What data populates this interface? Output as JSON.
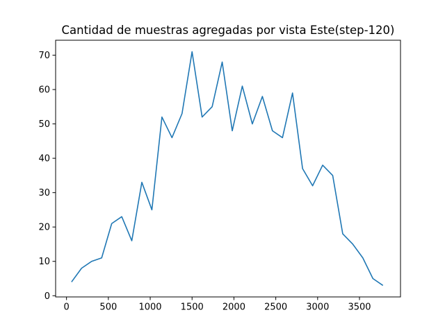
{
  "chart_data": {
    "type": "line",
    "title": "Cantidad de muestras agregadas por vista Este(step-120)",
    "xlabel": "",
    "ylabel": "",
    "xlim": [
      -130,
      3990
    ],
    "ylim": [
      -0.35,
      74.35
    ],
    "xticks": [
      0,
      500,
      1000,
      1500,
      2000,
      2500,
      3000,
      3500
    ],
    "yticks": [
      0,
      10,
      20,
      30,
      40,
      50,
      60,
      70
    ],
    "grid": false,
    "series": [
      {
        "color": "#1f77b4",
        "x": [
          60,
          180,
          300,
          420,
          540,
          660,
          780,
          900,
          1020,
          1140,
          1260,
          1380,
          1500,
          1620,
          1740,
          1860,
          1980,
          2100,
          2220,
          2340,
          2460,
          2580,
          2700,
          2820,
          2940,
          3060,
          3180,
          3300,
          3420,
          3540,
          3660,
          3780
        ],
        "values": [
          4,
          8,
          10,
          11,
          21,
          23,
          16,
          33,
          25,
          52,
          46,
          53,
          71,
          52,
          55,
          68,
          48,
          61,
          50,
          58,
          48,
          46,
          59,
          37,
          32,
          38,
          35,
          18,
          15,
          11,
          5,
          3
        ]
      }
    ]
  }
}
